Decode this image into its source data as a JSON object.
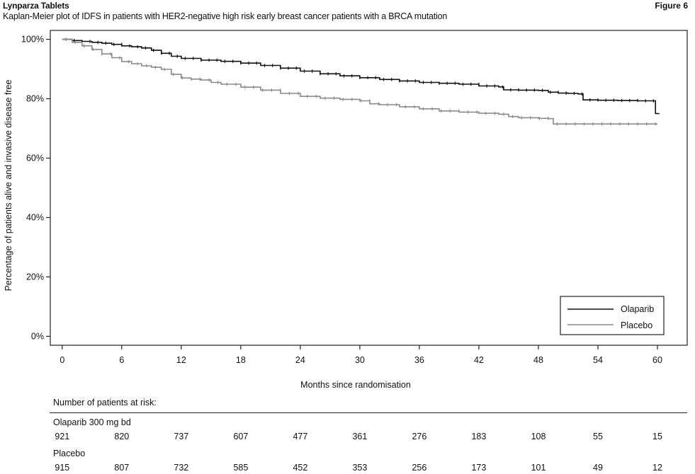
{
  "header": {
    "title": "Lynparza Tablets",
    "figure": "Figure 6",
    "subtitle": "Kaplan-Meier plot of IDFS in patients with HER2-negative high risk early breast cancer patients with a BRCA mutation"
  },
  "chart_data": {
    "type": "line",
    "title": "Kaplan-Meier plot of IDFS in patients with HER2-negative high risk early breast cancer patients with a BRCA mutation",
    "xlabel": "Months since randomisation",
    "ylabel": "Percentage of patients alive and invasive disease free",
    "xlim": [
      -1.2,
      63
    ],
    "ylim": [
      -3,
      103
    ],
    "x_ticks": [
      0,
      6,
      12,
      18,
      24,
      30,
      36,
      42,
      48,
      54,
      60
    ],
    "y_ticks": [
      0,
      20,
      40,
      60,
      80,
      100
    ],
    "y_tick_labels": [
      "0%",
      "20%",
      "40%",
      "60%",
      "80%",
      "100%"
    ],
    "legend_position": "bottom-right",
    "grid": false,
    "series": [
      {
        "name": "Olaparib",
        "color": "#111111",
        "x": [
          0,
          1,
          2,
          3,
          4,
          5,
          6,
          7,
          8,
          9,
          10,
          11,
          12,
          14,
          16,
          18,
          20,
          22,
          24,
          26,
          28,
          30,
          32,
          34,
          36,
          38,
          40,
          42,
          44,
          44.5,
          46,
          48,
          49,
          50,
          51,
          52,
          52.5,
          54,
          56,
          58,
          59.5,
          59.8,
          60.2
        ],
        "y": [
          100,
          99.6,
          99.3,
          99.0,
          98.7,
          98.3,
          97.8,
          97.5,
          97.1,
          96.3,
          95.3,
          94.3,
          93.6,
          93.0,
          92.6,
          92.0,
          91.2,
          90.3,
          89.3,
          88.4,
          87.7,
          87.1,
          86.5,
          86.0,
          85.5,
          85.2,
          84.9,
          84.3,
          84.0,
          83.0,
          82.9,
          82.8,
          82.2,
          81.9,
          81.8,
          81.6,
          79.6,
          79.5,
          79.4,
          79.3,
          79.3,
          75.0,
          75.0
        ]
      },
      {
        "name": "Placebo",
        "color": "#8a8a8a",
        "x": [
          0,
          1,
          2,
          3,
          4,
          5,
          6,
          7,
          8,
          9,
          10,
          11,
          12,
          13,
          14,
          15,
          16,
          18,
          20,
          22,
          24,
          26,
          28,
          30,
          31,
          32,
          34,
          36,
          38,
          40,
          42,
          44,
          45,
          46,
          48,
          49,
          49.5,
          50,
          52,
          54,
          56,
          58,
          60
        ],
        "y": [
          100,
          99.0,
          97.8,
          96.6,
          95.1,
          93.8,
          92.5,
          91.8,
          91.1,
          90.6,
          89.9,
          88.2,
          87.0,
          86.6,
          86.3,
          85.5,
          84.9,
          83.9,
          82.9,
          81.8,
          80.8,
          80.2,
          79.8,
          79.3,
          78.3,
          78.0,
          77.3,
          76.6,
          75.9,
          75.5,
          75.1,
          74.8,
          74.0,
          73.6,
          73.4,
          73.3,
          71.5,
          71.5,
          71.5,
          71.5,
          71.5,
          71.5,
          71.5
        ]
      }
    ]
  },
  "risk_table": {
    "heading": "Number of patients at risk:",
    "months": [
      0,
      6,
      12,
      18,
      24,
      30,
      36,
      42,
      48,
      54,
      60
    ],
    "rows": [
      {
        "label": "Olaparib 300 mg bd",
        "values": [
          "921",
          "820",
          "737",
          "607",
          "477",
          "361",
          "276",
          "183",
          "108",
          "55",
          "15"
        ]
      },
      {
        "label": "Placebo",
        "values": [
          "915",
          "807",
          "732",
          "585",
          "452",
          "353",
          "256",
          "173",
          "101",
          "49",
          "12"
        ]
      }
    ]
  }
}
